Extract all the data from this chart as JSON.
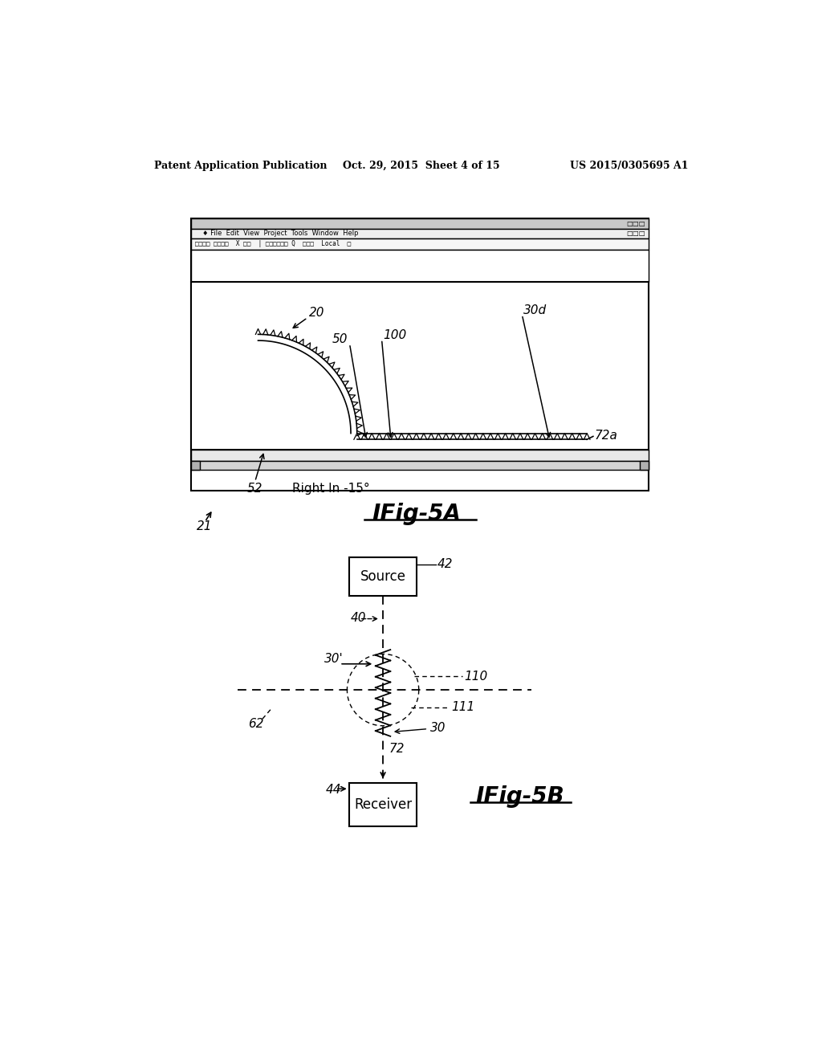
{
  "bg_color": "#ffffff",
  "header_text_left": "Patent Application Publication",
  "header_text_center": "Oct. 29, 2015  Sheet 4 of 15",
  "header_text_right": "US 2015/0305695 A1",
  "fig5a_title": "IFig-5A",
  "fig5b_title": "IFig-5B",
  "label_21": "21",
  "label_42": "42",
  "label_40": "40",
  "label_44": "44",
  "label_62": "62",
  "label_72": "72",
  "label_110": "110",
  "label_111": "111",
  "label_30": "30",
  "label_30prime": "30'",
  "label_source": "Source",
  "label_receiver": "Receiver",
  "label_20": "20",
  "label_50": "50",
  "label_100": "100",
  "label_30d": "30d",
  "label_72a": "72a",
  "label_52": "52",
  "label_rightIn": "Right In -15°"
}
